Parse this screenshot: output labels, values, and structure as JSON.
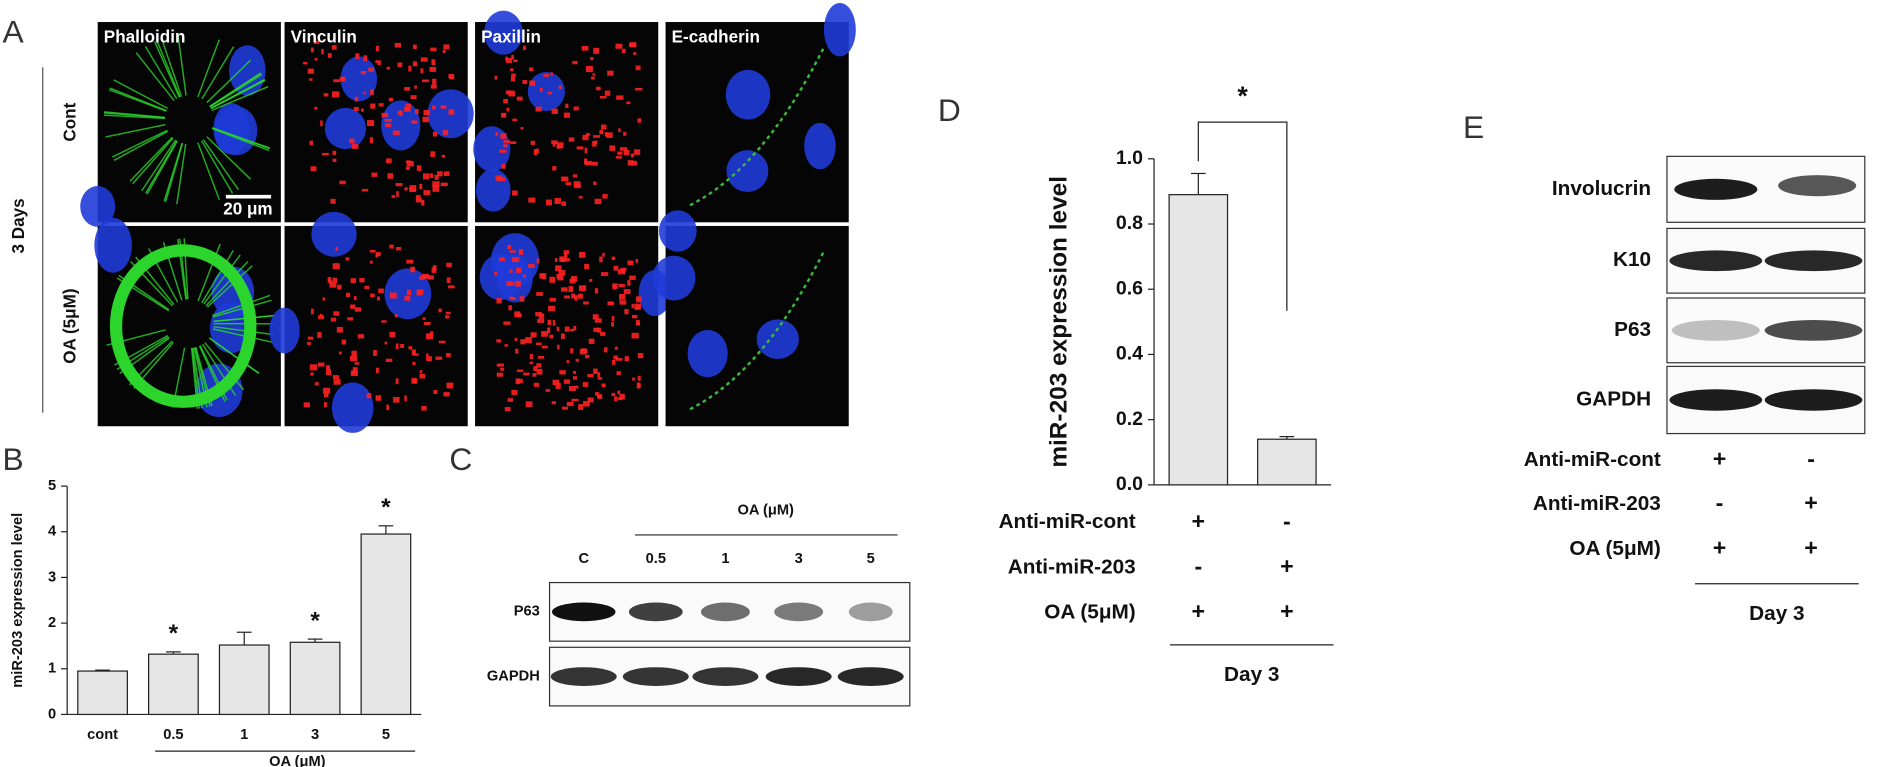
{
  "panel_a": {
    "label": "A",
    "columns": [
      "Phalloidin",
      "Vinculin",
      "Paxillin",
      "E-cadherin"
    ],
    "rows": [
      "Cont",
      "OA (5μM)"
    ],
    "group": "3 Days",
    "scale_bar": "20 μm"
  },
  "panel_c": {
    "label": "C",
    "group": "OA (μM)",
    "lanes": [
      "C",
      "0.5",
      "1",
      "3",
      "5"
    ],
    "rows": [
      "P63",
      "GAPDH"
    ]
  },
  "panel_e": {
    "label": "E",
    "rows": [
      "Involucrin",
      "K10",
      "P63",
      "GAPDH"
    ],
    "conditions": [
      {
        "label": "Anti-miR-cont",
        "marks": [
          "+",
          "-"
        ]
      },
      {
        "label": "Anti-miR-203",
        "marks": [
          "-",
          "+"
        ]
      },
      {
        "label": "OA (5μM)",
        "marks": [
          "+",
          "+"
        ]
      }
    ],
    "footer": "Day 3"
  },
  "chart_data": [
    {
      "type": "bar",
      "panel": "B",
      "y_label": "miR-203 expression level",
      "x_group": "OA (μM)",
      "categories": [
        "cont",
        "0.5",
        "1",
        "3",
        "5"
      ],
      "values": [
        0.95,
        1.32,
        1.52,
        1.58,
        3.95
      ],
      "errors": [
        0.02,
        0.05,
        0.28,
        0.07,
        0.18
      ],
      "color": "#e6e6e6",
      "ylim": [
        0,
        5
      ],
      "yticks": [
        0,
        1,
        2,
        3,
        4,
        5
      ],
      "markers": [
        {
          "category": "0.5",
          "text": "*"
        },
        {
          "category": "3",
          "text": "*"
        },
        {
          "category": "5",
          "text": "*"
        }
      ]
    },
    {
      "type": "bar",
      "panel": "D",
      "y_label": "miR-203 expression level",
      "categories": [
        null,
        null
      ],
      "values": [
        0.89,
        0.14
      ],
      "errors": [
        0.065,
        0.008
      ],
      "color": "#e6e6e6",
      "ylim": [
        0,
        1.0
      ],
      "yticks": [
        {
          "value": 0,
          "label": "0.0"
        },
        0.2,
        0.4,
        0.6,
        0.8,
        {
          "value": 1.0,
          "label": "1.0"
        }
      ],
      "significance": "*",
      "conditions": [
        {
          "label": "Anti-miR-cont",
          "marks": [
            "+",
            "-"
          ]
        },
        {
          "label": "Anti-miR-203",
          "marks": [
            "-",
            "+"
          ]
        },
        {
          "label": "OA (5μM)",
          "marks": [
            "+",
            "+"
          ]
        }
      ],
      "footer": "Day 3"
    }
  ]
}
